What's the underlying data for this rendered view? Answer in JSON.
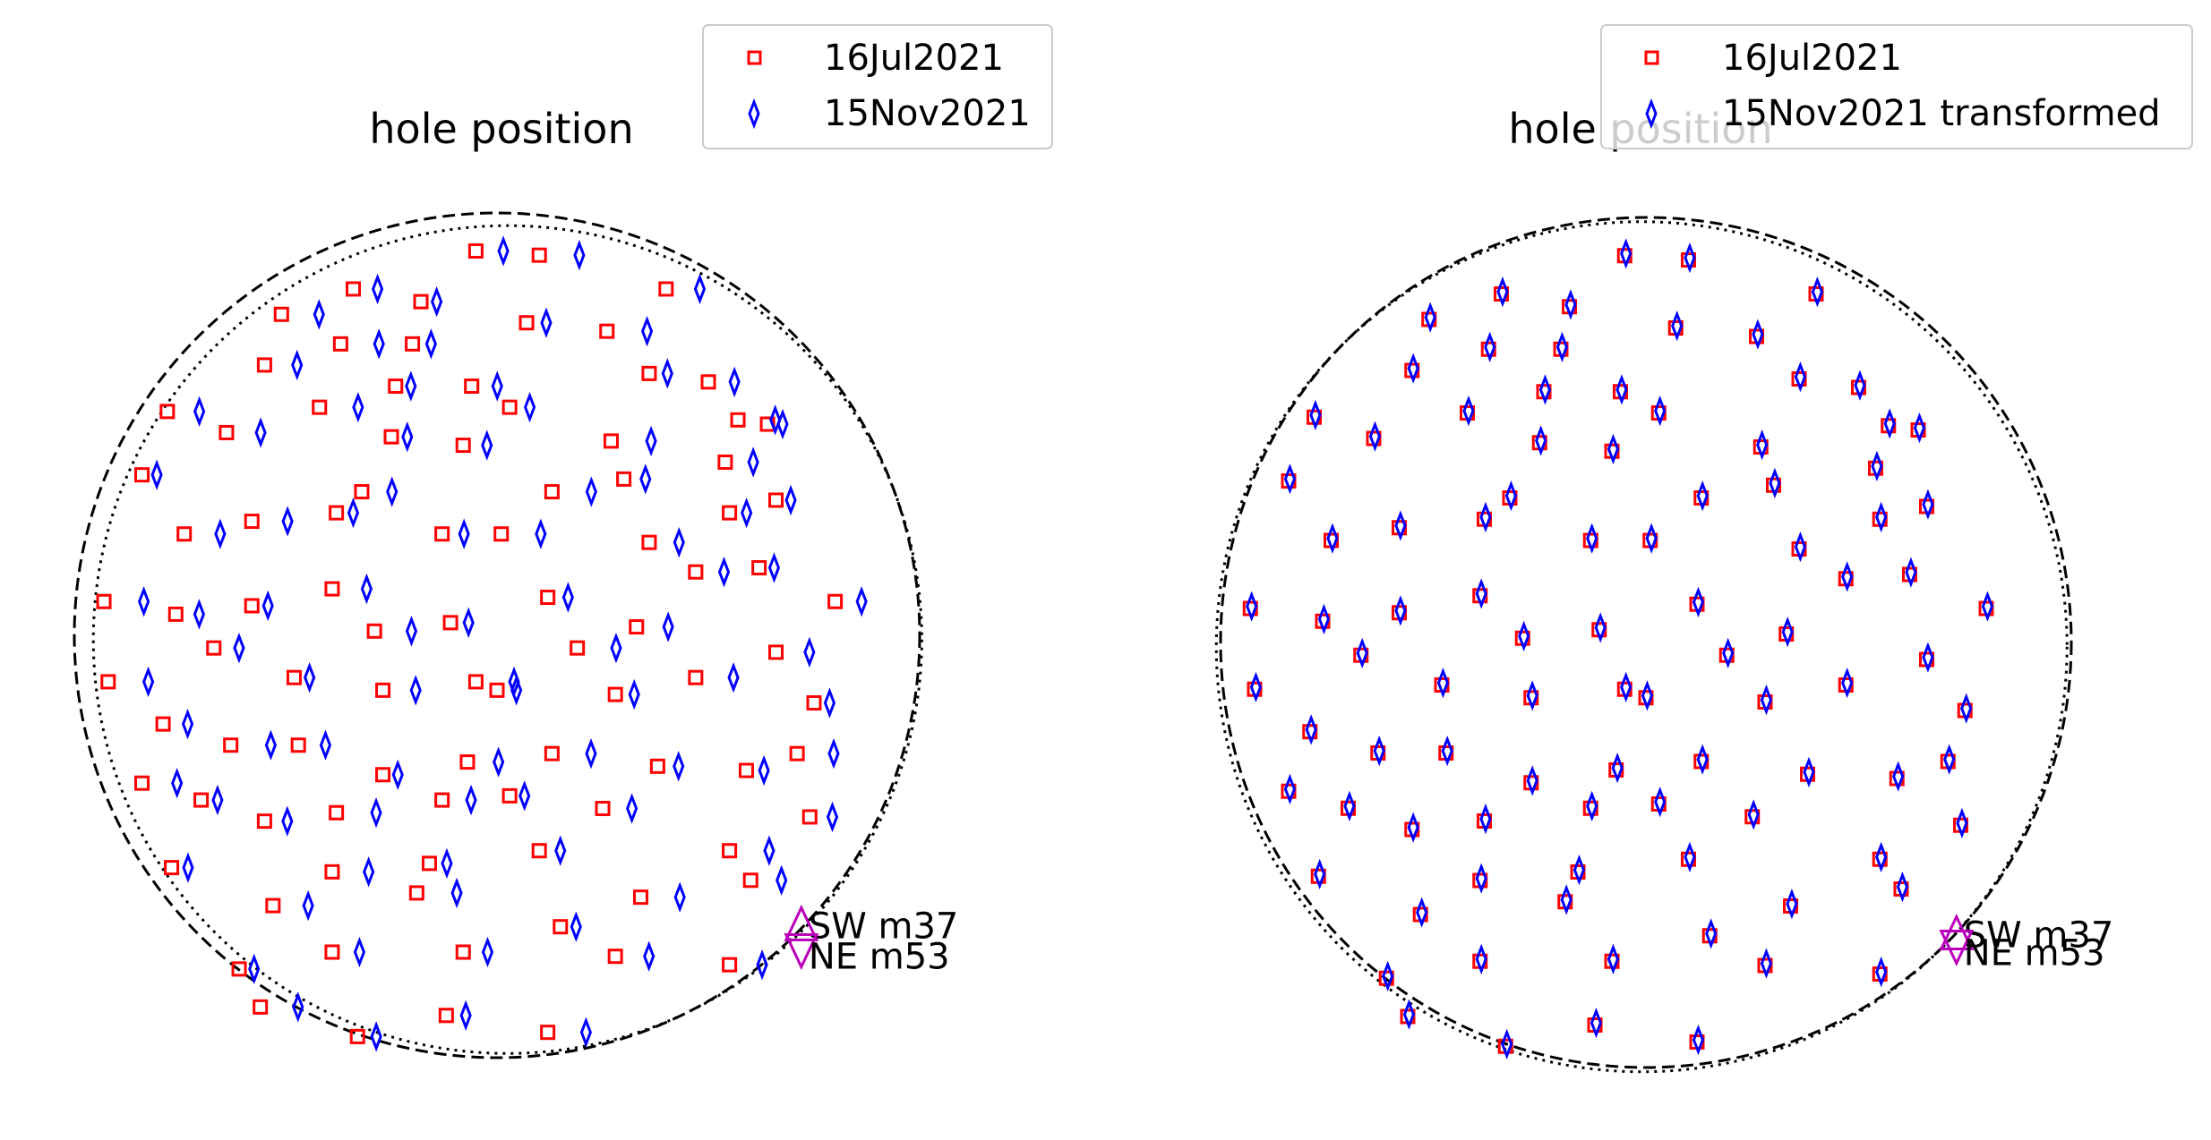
{
  "chart_data": [
    {
      "type": "scatter",
      "title": "hole position",
      "xlabel": "",
      "ylabel": "",
      "grid": false,
      "legend_placement": "top-right",
      "colors": {
        "ref": "#ff0000",
        "cmp": "#0000ff",
        "marker": "#bb00bb"
      },
      "circles": [
        {
          "style": "dashed",
          "cx": 0.0,
          "cy": 0.0,
          "r": 1.0
        },
        {
          "style": "dotted",
          "cx": 0.025,
          "cy": -0.01,
          "r": 0.98
        }
      ],
      "series": [
        {
          "name": "16Jul2021",
          "marker": "square",
          "shift": [
            0.0,
            0.0
          ]
        },
        {
          "name": "15Nov2021",
          "marker": "thin_diamond",
          "shift": [
            0.02,
            0.0
          ]
        }
      ],
      "annotations": [
        {
          "label": "SW m37",
          "x": 0.72,
          "y": -0.7,
          "marker": "triangle-up"
        },
        {
          "label": "NE m53",
          "x": 0.72,
          "y": -0.73,
          "marker": "triangle-down"
        }
      ]
    },
    {
      "type": "scatter",
      "title": "hole position",
      "xlabel": "",
      "ylabel": "",
      "grid": false,
      "legend_placement": "top-right",
      "colors": {
        "ref": "#ff0000",
        "cmp": "#0000ff",
        "marker": "#bb00bb"
      },
      "circles": [
        {
          "style": "dashed",
          "cx": 0.0,
          "cy": 0.0,
          "r": 1.0
        },
        {
          "style": "dotted",
          "cx": -0.01,
          "cy": -0.01,
          "r": 1.0
        }
      ],
      "series": [
        {
          "name": "16Jul2021",
          "marker": "square",
          "shift": [
            0.0,
            0.0
          ]
        },
        {
          "name": "15Nov2021 transformed",
          "marker": "thin_diamond",
          "shift": [
            0.003,
            0.005
          ]
        }
      ],
      "annotations": [
        {
          "label": "SW m37",
          "x": 0.73,
          "y": -0.7,
          "marker": "triangle-up"
        },
        {
          "label": "NE m53",
          "x": 0.73,
          "y": -0.7,
          "marker": "triangle-down"
        }
      ]
    }
  ],
  "holes": [
    [
      -0.05,
      0.91
    ],
    [
      0.1,
      0.9
    ],
    [
      -0.34,
      0.82
    ],
    [
      -0.18,
      0.79
    ],
    [
      0.4,
      0.82
    ],
    [
      -0.51,
      0.76
    ],
    [
      -0.2,
      0.69
    ],
    [
      0.07,
      0.74
    ],
    [
      -0.37,
      0.69
    ],
    [
      -0.55,
      0.64
    ],
    [
      -0.24,
      0.59
    ],
    [
      -0.06,
      0.59
    ],
    [
      0.26,
      0.72
    ],
    [
      0.5,
      0.6
    ],
    [
      0.64,
      0.5
    ],
    [
      -0.78,
      0.53
    ],
    [
      -0.42,
      0.54
    ],
    [
      0.03,
      0.54
    ],
    [
      0.36,
      0.62
    ],
    [
      0.57,
      0.51
    ],
    [
      -0.64,
      0.48
    ],
    [
      -0.25,
      0.47
    ],
    [
      -0.08,
      0.45
    ],
    [
      0.27,
      0.46
    ],
    [
      0.54,
      0.41
    ],
    [
      -0.84,
      0.38
    ],
    [
      -0.32,
      0.34
    ],
    [
      0.13,
      0.34
    ],
    [
      0.3,
      0.37
    ],
    [
      0.55,
      0.29
    ],
    [
      -0.74,
      0.24
    ],
    [
      -0.58,
      0.27
    ],
    [
      -0.38,
      0.29
    ],
    [
      -0.13,
      0.24
    ],
    [
      0.01,
      0.24
    ],
    [
      0.36,
      0.22
    ],
    [
      0.66,
      0.32
    ],
    [
      0.47,
      0.15
    ],
    [
      -0.93,
      0.08
    ],
    [
      -0.76,
      0.05
    ],
    [
      -0.58,
      0.07
    ],
    [
      -0.39,
      0.11
    ],
    [
      -0.29,
      0.01
    ],
    [
      -0.11,
      0.03
    ],
    [
      0.12,
      0.09
    ],
    [
      0.19,
      -0.03
    ],
    [
      0.33,
      0.02
    ],
    [
      0.62,
      0.16
    ],
    [
      0.8,
      0.08
    ],
    [
      -0.92,
      -0.11
    ],
    [
      -0.67,
      -0.03
    ],
    [
      -0.48,
      -0.1
    ],
    [
      -0.27,
      -0.13
    ],
    [
      -0.05,
      -0.11
    ],
    [
      0.0,
      -0.13
    ],
    [
      0.28,
      -0.14
    ],
    [
      0.47,
      -0.1
    ],
    [
      0.66,
      -0.04
    ],
    [
      0.75,
      -0.16
    ],
    [
      -0.79,
      -0.21
    ],
    [
      -0.63,
      -0.26
    ],
    [
      -0.47,
      -0.26
    ],
    [
      -0.27,
      -0.33
    ],
    [
      -0.07,
      -0.3
    ],
    [
      0.13,
      -0.28
    ],
    [
      0.38,
      -0.31
    ],
    [
      0.59,
      -0.32
    ],
    [
      0.71,
      -0.28
    ],
    [
      -0.84,
      -0.35
    ],
    [
      -0.7,
      -0.39
    ],
    [
      -0.55,
      -0.44
    ],
    [
      -0.38,
      -0.42
    ],
    [
      -0.13,
      -0.39
    ],
    [
      0.03,
      -0.38
    ],
    [
      0.25,
      -0.41
    ],
    [
      0.55,
      -0.51
    ],
    [
      0.74,
      -0.43
    ],
    [
      -0.77,
      -0.55
    ],
    [
      -0.53,
      -0.64
    ],
    [
      -0.39,
      -0.56
    ],
    [
      -0.16,
      -0.54
    ],
    [
      0.1,
      -0.51
    ],
    [
      0.34,
      -0.62
    ],
    [
      0.6,
      -0.58
    ],
    [
      -0.61,
      -0.79
    ],
    [
      -0.39,
      -0.75
    ],
    [
      -0.19,
      -0.61
    ],
    [
      -0.08,
      -0.75
    ],
    [
      0.15,
      -0.69
    ],
    [
      0.28,
      -0.76
    ],
    [
      -0.56,
      -0.88
    ],
    [
      -0.33,
      -0.95
    ],
    [
      -0.12,
      -0.9
    ],
    [
      0.12,
      -0.94
    ],
    [
      0.55,
      -0.78
    ]
  ]
}
